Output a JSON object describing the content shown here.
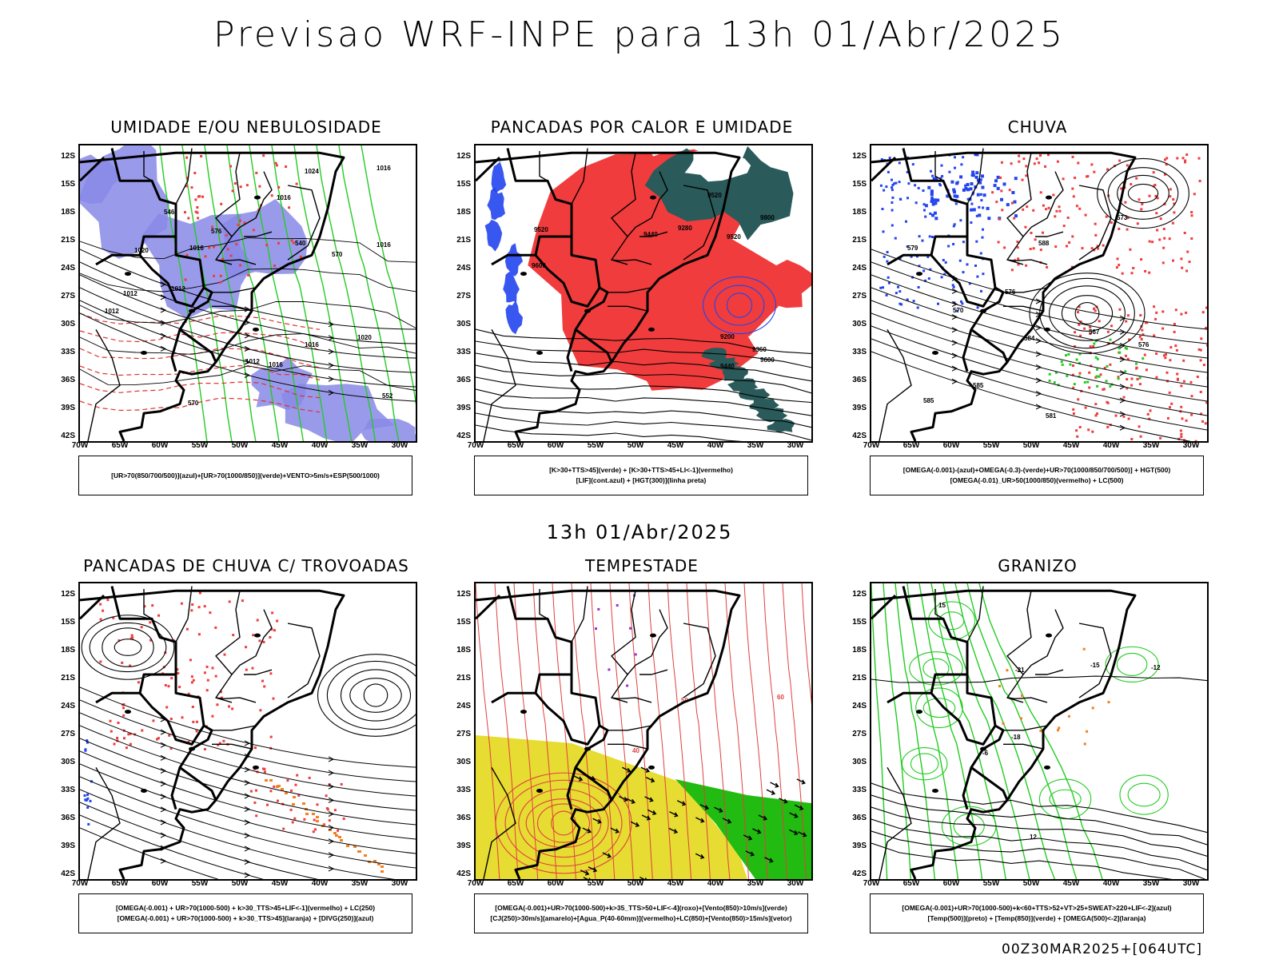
{
  "title": "Previsao WRF-INPE  para 13h 01/Abr/2025",
  "mid_title": "13h 01/Abr/2025",
  "footer": "00Z30MAR2025+[064UTC]",
  "lat_labels": [
    "12S",
    "15S",
    "18S",
    "21S",
    "24S",
    "27S",
    "30S",
    "33S",
    "36S",
    "39S",
    "42S"
  ],
  "lon_labels": [
    "70W",
    "65W",
    "60W",
    "55W",
    "50W",
    "45W",
    "40W",
    "35W",
    "30W"
  ],
  "colors": {
    "blue_fill": "#8888e8",
    "green_contour": "#22cc22",
    "red_fill": "#f03c3c",
    "dark_teal": "#2a5a5a",
    "yellow": "#e6dc32",
    "orange": "#f08020",
    "blue": "#2244ee"
  },
  "panels": [
    {
      "title": "UMIDADE E/OU NEBULOSIDADE",
      "legend": [
        "[UR>70(850/700/500)](azul)+[UR>70(1000/850)](verde)+VENTO>5m/s+ESP(500/1000)"
      ],
      "contour_labels": [
        "1016",
        "1012",
        "1012",
        "1012",
        "1016",
        "1016",
        "1020",
        "1024",
        "1020",
        "1012",
        "1016",
        "552",
        "546",
        "540",
        "570",
        "576",
        "570",
        "1016",
        "1016"
      ]
    },
    {
      "title": "PANCADAS POR CALOR E UMIDADE",
      "legend": [
        "[K>30+TTS>45](verde) + [K>30+TTS>45+LI<-1](vermelho)",
        "[LIF](cont.azul) + [HGT(300)](linha preta)"
      ],
      "contour_labels": [
        "9600",
        "9520",
        "9440",
        "9360",
        "9280",
        "9200",
        "9520",
        "9440",
        "9600",
        "9520",
        "9800"
      ]
    },
    {
      "title": "CHUVA",
      "legend": [
        "[OMEGA(-0.001)-(azul)+OMEGA(-0.3)-(verde)+UR>70(1000/850/700/500)] + HGT(500)",
        "[OMEGA(-0.01)_UR>50(1000/850)(vermelho) + LC(500)"
      ],
      "contour_labels": [
        "585",
        "585",
        "576",
        "570",
        "567",
        "584",
        "581",
        "579",
        "588",
        "576",
        "573"
      ]
    },
    {
      "title": "PANCADAS DE CHUVA C/ TROVOADAS",
      "legend": [
        "[OMEGA(-0.001) + UR>70(1000-500) + k>30_TTS>45+LIF<-1](vermelho) + LC(250)",
        "[OMEGA(-0.001) + UR>70(1000-500) + k>30_TTS>45](laranja) + [DIVG(250)](azul)"
      ],
      "contour_labels": []
    },
    {
      "title": "TEMPESTADE",
      "legend": [
        "[OMEGA(-0.001)+UR>70(1000-500)+k>35_TTS>50+LIF<-4](roxo)+[Vento(850)>10m/s](verde)",
        "[CJ(250)>30m/s](amarelo)+[Agua_P(40-60mm)](vermelho)+LC(850)+[Vento(850)>15m/s](vetor)"
      ],
      "contour_labels": [
        "40",
        "50",
        "60"
      ]
    },
    {
      "title": "GRANIZO",
      "legend": [
        "[OMEGA(-0.001)+UR>70(1000-500)+k<60+TTS>52+VT>25+SWEAT>220+LIF<-2](azul)",
        "[Temp(500)](preto) + [Temp(850)](verde) + [OMEGA(500)<-2](laranja)"
      ],
      "contour_labels": [
        "-6",
        "-12",
        "-15",
        "-18",
        "-21",
        "12",
        "15"
      ]
    }
  ]
}
